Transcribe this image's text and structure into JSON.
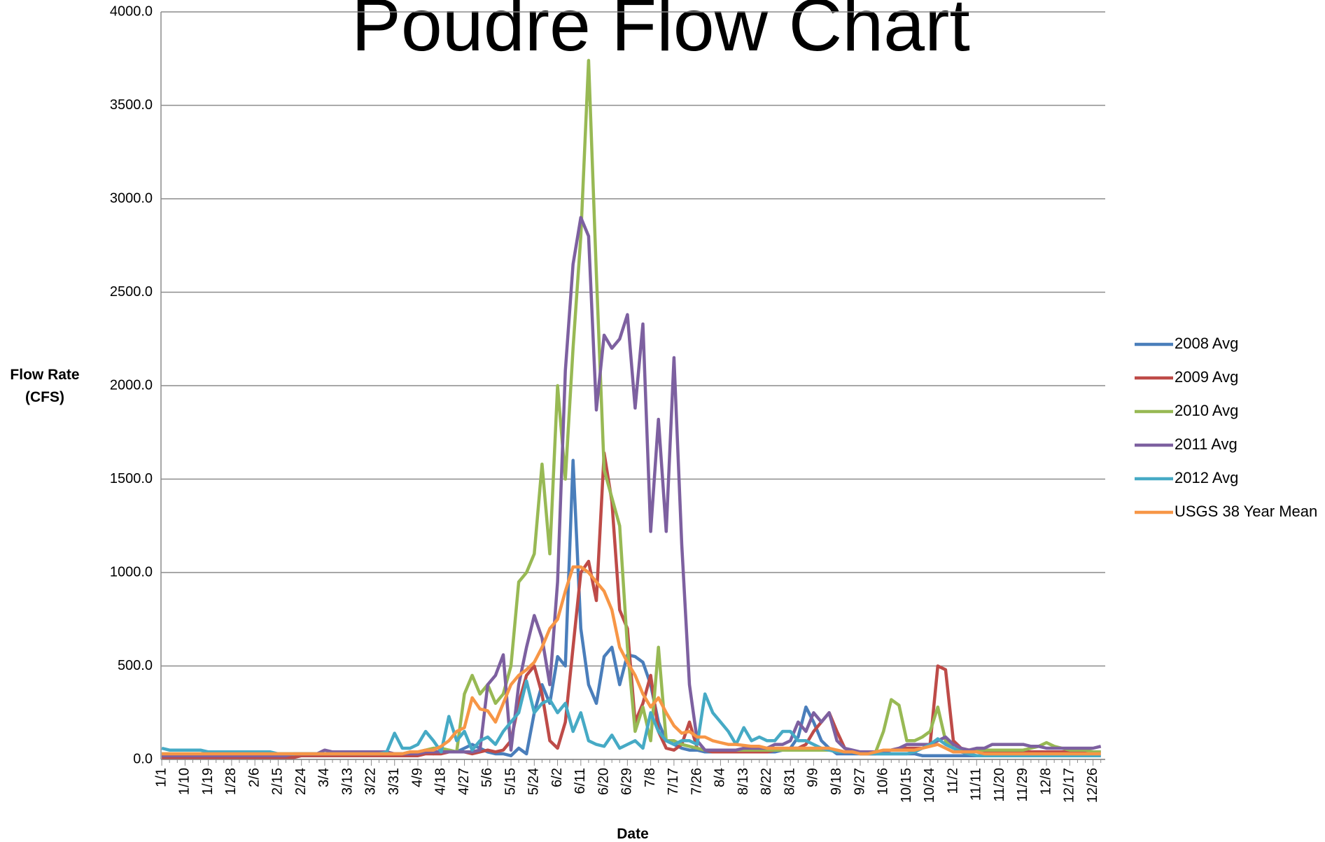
{
  "chart_data": {
    "type": "line",
    "title": "Poudre Flow Chart",
    "xlabel": "Date",
    "ylabel": "Flow Rate (CFS)",
    "categories": [
      "1/1",
      null,
      null,
      "1/10",
      null,
      null,
      "1/19",
      null,
      null,
      "1/28",
      null,
      null,
      "2/6",
      null,
      null,
      "2/15",
      null,
      null,
      "2/24",
      null,
      null,
      "3/4",
      null,
      null,
      "3/13",
      null,
      null,
      "3/22",
      null,
      null,
      "3/31",
      null,
      null,
      "4/9",
      null,
      null,
      "4/18",
      null,
      null,
      "4/27",
      null,
      null,
      "5/6",
      null,
      null,
      "5/15",
      null,
      null,
      "5/24",
      null,
      null,
      "6/2",
      null,
      null,
      "6/11",
      null,
      null,
      "6/20",
      null,
      null,
      "6/29",
      null,
      null,
      "7/8",
      null,
      null,
      "7/17",
      null,
      null,
      "7/26",
      null,
      null,
      "8/4",
      null,
      null,
      "8/13",
      null,
      null,
      "8/22",
      null,
      null,
      "8/31",
      null,
      null,
      "9/9",
      null,
      null,
      "9/18",
      null,
      null,
      "9/27",
      null,
      null,
      "10/6",
      null,
      null,
      "10/15",
      null,
      null,
      "10/24",
      null,
      null,
      "11/2",
      null,
      null,
      "11/11",
      null,
      null,
      "11/20",
      null,
      null,
      "11/29",
      null,
      null,
      "12/8",
      null,
      null,
      "12/17",
      null,
      null,
      "12/26",
      null
    ],
    "series": [
      {
        "name": "2008 Avg",
        "color": "#4a7ebb",
        "values": [
          20,
          20,
          20,
          20,
          20,
          20,
          20,
          20,
          20,
          20,
          20,
          20,
          20,
          20,
          20,
          20,
          20,
          20,
          20,
          20,
          20,
          20,
          20,
          20,
          20,
          20,
          20,
          20,
          20,
          20,
          20,
          20,
          30,
          30,
          40,
          30,
          40,
          50,
          40,
          60,
          80,
          60,
          40,
          30,
          30,
          20,
          60,
          30,
          250,
          400,
          300,
          550,
          500,
          1600,
          700,
          400,
          300,
          550,
          600,
          400,
          560,
          550,
          520,
          400,
          200,
          100,
          80,
          60,
          50,
          50,
          40,
          40,
          40,
          40,
          40,
          40,
          40,
          40,
          40,
          40,
          50,
          60,
          120,
          280,
          200,
          100,
          60,
          30,
          30,
          30,
          30,
          30,
          30,
          30,
          30,
          30,
          30,
          30,
          20,
          20,
          20,
          20,
          20,
          20,
          20,
          20,
          20,
          20,
          20,
          20,
          20,
          20,
          20,
          20,
          20,
          20,
          20,
          20,
          20,
          20,
          20,
          20
        ]
      },
      {
        "name": "2009 Avg",
        "color": "#be4b48",
        "values": [
          10,
          10,
          10,
          10,
          10,
          10,
          10,
          10,
          10,
          10,
          10,
          10,
          10,
          10,
          10,
          10,
          10,
          10,
          20,
          20,
          20,
          20,
          20,
          20,
          20,
          20,
          20,
          20,
          20,
          20,
          20,
          20,
          20,
          20,
          30,
          30,
          30,
          40,
          40,
          40,
          30,
          40,
          50,
          40,
          50,
          100,
          300,
          450,
          500,
          350,
          100,
          60,
          200,
          600,
          1000,
          1060,
          850,
          1640,
          1380,
          800,
          700,
          200,
          300,
          450,
          150,
          60,
          50,
          80,
          200,
          60,
          50,
          40,
          40,
          40,
          40,
          40,
          40,
          40,
          40,
          50,
          50,
          60,
          60,
          80,
          150,
          200,
          250,
          150,
          60,
          40,
          30,
          30,
          30,
          40,
          50,
          60,
          60,
          60,
          60,
          80,
          500,
          480,
          100,
          60,
          50,
          40,
          40,
          40,
          40,
          40,
          40,
          40,
          40,
          40,
          40,
          40,
          40,
          40,
          40,
          40,
          40,
          40
        ]
      },
      {
        "name": "2010 Avg",
        "color": "#98b954",
        "values": [
          30,
          30,
          30,
          30,
          30,
          30,
          30,
          30,
          30,
          30,
          30,
          30,
          30,
          30,
          30,
          30,
          30,
          30,
          30,
          30,
          30,
          30,
          30,
          30,
          30,
          30,
          30,
          30,
          30,
          30,
          30,
          30,
          40,
          40,
          50,
          60,
          60,
          50,
          40,
          350,
          450,
          350,
          400,
          300,
          350,
          500,
          950,
          1000,
          1100,
          1580,
          1100,
          2000,
          1500,
          2200,
          2800,
          3740,
          2600,
          1550,
          1400,
          1250,
          600,
          150,
          280,
          100,
          600,
          100,
          100,
          80,
          70,
          60,
          50,
          50,
          50,
          50,
          50,
          50,
          50,
          50,
          50,
          50,
          50,
          50,
          50,
          50,
          50,
          50,
          50,
          50,
          40,
          40,
          40,
          40,
          40,
          150,
          320,
          290,
          100,
          100,
          120,
          150,
          280,
          100,
          60,
          50,
          50,
          50,
          50,
          50,
          50,
          50,
          50,
          50,
          60,
          70,
          90,
          70,
          60,
          50,
          50,
          50,
          40,
          40
        ]
      },
      {
        "name": "2011 Avg",
        "color": "#7d60a0",
        "values": [
          20,
          20,
          20,
          20,
          20,
          20,
          20,
          20,
          20,
          20,
          20,
          20,
          20,
          20,
          20,
          20,
          20,
          30,
          30,
          30,
          30,
          50,
          40,
          40,
          40,
          40,
          40,
          40,
          40,
          40,
          30,
          30,
          30,
          30,
          40,
          40,
          40,
          40,
          40,
          40,
          40,
          50,
          400,
          450,
          560,
          50,
          400,
          600,
          770,
          650,
          400,
          950,
          2080,
          2650,
          2900,
          2800,
          1870,
          2270,
          2200,
          2250,
          2380,
          1880,
          2330,
          1220,
          1820,
          1220,
          2150,
          1150,
          400,
          100,
          50,
          50,
          50,
          50,
          50,
          60,
          60,
          60,
          60,
          80,
          80,
          100,
          200,
          150,
          250,
          200,
          250,
          100,
          60,
          50,
          40,
          40,
          40,
          40,
          50,
          60,
          80,
          80,
          80,
          80,
          100,
          120,
          80,
          60,
          50,
          60,
          60,
          80,
          80,
          80,
          80,
          80,
          70,
          70,
          60,
          60,
          60,
          60,
          60,
          60,
          60,
          70
        ]
      },
      {
        "name": "2012 Avg",
        "color": "#46aac5",
        "values": [
          60,
          50,
          50,
          50,
          50,
          50,
          40,
          40,
          40,
          40,
          40,
          40,
          40,
          40,
          40,
          30,
          30,
          30,
          30,
          30,
          30,
          30,
          30,
          30,
          30,
          30,
          30,
          30,
          30,
          40,
          140,
          60,
          60,
          80,
          150,
          100,
          40,
          230,
          100,
          150,
          50,
          100,
          120,
          80,
          150,
          200,
          250,
          420,
          250,
          300,
          320,
          250,
          300,
          150,
          250,
          100,
          80,
          70,
          130,
          60,
          80,
          100,
          60,
          250,
          150,
          100,
          80,
          100,
          100,
          80,
          350,
          250,
          200,
          150,
          80,
          170,
          100,
          120,
          100,
          100,
          150,
          150,
          100,
          100,
          80,
          60,
          50,
          40,
          40,
          40,
          30,
          30,
          30,
          30,
          30,
          30,
          30,
          40,
          60,
          80,
          110,
          80,
          60,
          40,
          30,
          20,
          20,
          20,
          20,
          20,
          20,
          20,
          20,
          20,
          20,
          20,
          20,
          20,
          20,
          20,
          20,
          20
        ]
      },
      {
        "name": "USGS 38 Year Mean",
        "color": "#f79646",
        "values": [
          30,
          30,
          30,
          30,
          30,
          30,
          30,
          30,
          30,
          30,
          30,
          30,
          30,
          30,
          30,
          30,
          30,
          30,
          30,
          30,
          30,
          30,
          30,
          30,
          30,
          30,
          30,
          30,
          30,
          30,
          30,
          30,
          40,
          40,
          50,
          50,
          70,
          100,
          150,
          170,
          330,
          270,
          260,
          200,
          300,
          400,
          450,
          480,
          520,
          600,
          700,
          750,
          900,
          1030,
          1030,
          1000,
          950,
          900,
          800,
          600,
          520,
          450,
          350,
          280,
          330,
          250,
          180,
          140,
          150,
          120,
          120,
          100,
          90,
          80,
          80,
          75,
          70,
          70,
          60,
          60,
          60,
          60,
          60,
          60,
          60,
          60,
          60,
          50,
          40,
          40,
          30,
          30,
          40,
          50,
          50,
          50,
          50,
          50,
          60,
          70,
          80,
          60,
          40,
          40,
          40,
          40,
          30,
          30,
          30,
          30,
          30,
          30,
          30,
          30,
          30,
          30,
          30,
          30,
          30,
          30,
          30,
          30
        ]
      }
    ],
    "ylim": [
      0,
      4000
    ],
    "yticks": [
      {
        "value": 0,
        "label": "0.0"
      },
      {
        "value": 500,
        "label": "500.0"
      },
      {
        "value": 1000,
        "label": "1000.0"
      },
      {
        "value": 1500,
        "label": "1500.0"
      },
      {
        "value": 2000,
        "label": "2000.0"
      },
      {
        "value": 2500,
        "label": "2500.0"
      },
      {
        "value": 3000,
        "label": "3000.0"
      },
      {
        "value": 3500,
        "label": "3500.0"
      },
      {
        "value": 4000,
        "label": "4000.0"
      }
    ],
    "grid": true,
    "legend": "right"
  }
}
